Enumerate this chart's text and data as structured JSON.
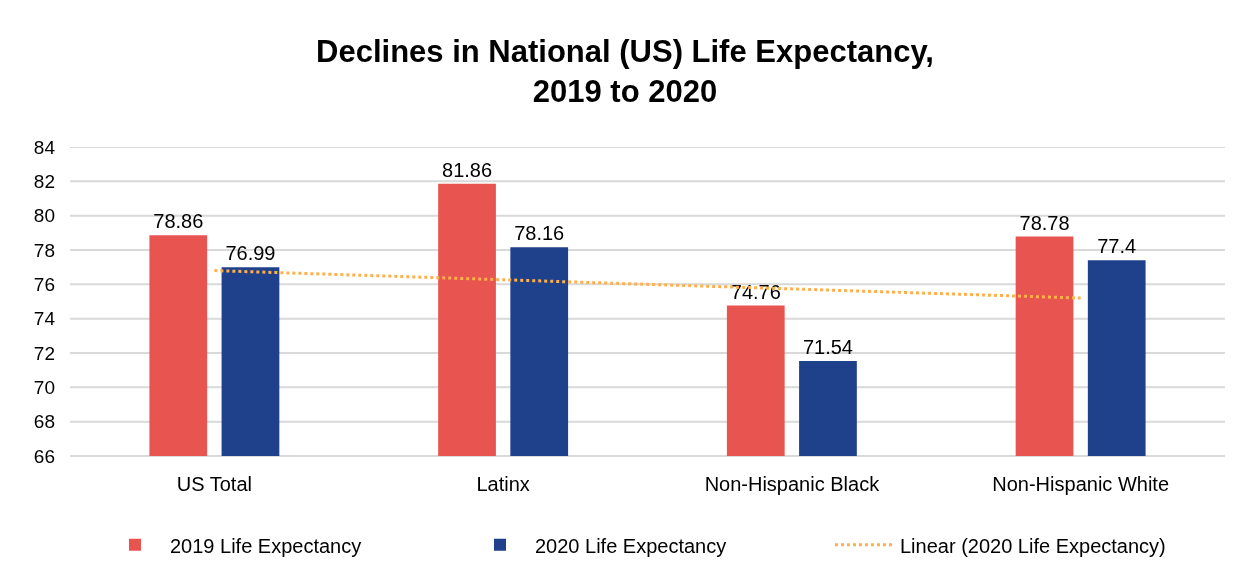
{
  "chart_data": {
    "type": "bar",
    "title": "Declines in National (US) Life Expectancy, 2019 to 2020",
    "categories": [
      "US Total",
      "Latinx",
      "Non-Hispanic Black",
      "Non-Hispanic White"
    ],
    "series": [
      {
        "name": "2019 Life Expectancy",
        "color": "#e85550",
        "values": [
          78.86,
          81.86,
          74.76,
          78.78
        ],
        "value_labels": [
          "78.86",
          "81.86",
          "74.76",
          "78.78"
        ]
      },
      {
        "name": "2020 Life Expectancy",
        "color": "#1f418b",
        "values": [
          76.99,
          78.16,
          71.54,
          77.4
        ],
        "value_labels": [
          "76.99",
          "78.16",
          "71.54",
          "77.4"
        ]
      },
      {
        "name": "Linear (2020 Life Expectancy)",
        "type": "line",
        "color": "#ffb04c",
        "x": [
          "US Total",
          "Non-Hispanic White"
        ],
        "values": [
          76.8,
          75.2
        ],
        "line_style": "dotted",
        "marker": "none"
      }
    ],
    "ylim": [
      66,
      84
    ],
    "yticks": [
      66,
      68,
      70,
      72,
      74,
      76,
      78,
      80,
      82,
      84
    ],
    "grid": "y",
    "legend": "bottom"
  }
}
